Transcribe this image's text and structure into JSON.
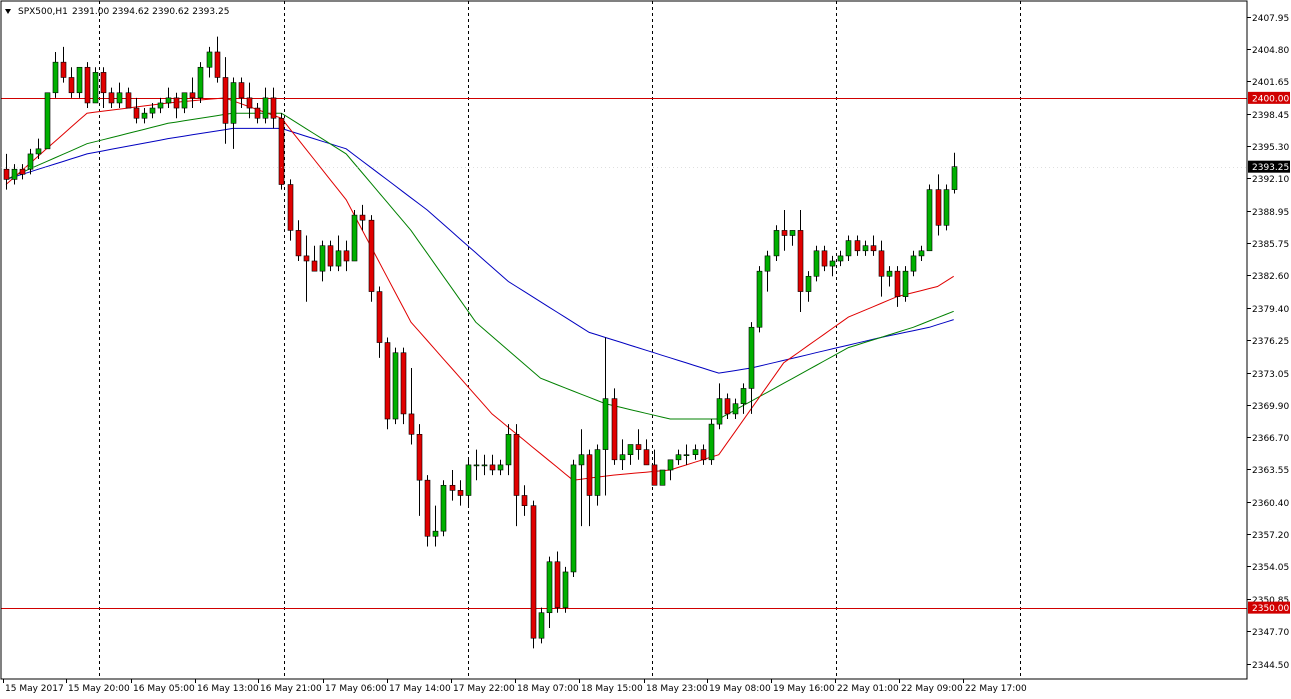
{
  "header": {
    "symbol": "SPX500,H1",
    "ohlc": "2391.00 2394.62 2390.62 2393.25"
  },
  "colors": {
    "bull": "#00b000",
    "bear": "#e00000",
    "ema_fast": "#e00000",
    "ema_mid": "#008000",
    "ema_slow": "#0000c0",
    "hline": "#d00000",
    "current": "#000000"
  },
  "chart_data": {
    "type": "candlestick",
    "symbol": "SPX500",
    "timeframe": "H1",
    "ylim": [
      2343.0,
      2409.5
    ],
    "y_ticks": [
      "2407.95",
      "2404.80",
      "2401.65",
      "2398.45",
      "2395.30",
      "2392.10",
      "2388.95",
      "2385.75",
      "2382.60",
      "2379.40",
      "2376.25",
      "2373.05",
      "2369.90",
      "2366.70",
      "2363.55",
      "2360.40",
      "2357.20",
      "2354.05",
      "2350.85",
      "2347.70",
      "2344.50"
    ],
    "x_labels": [
      "15 May 2017",
      "15 May 20:00",
      "16 May 05:00",
      "16 May 13:00",
      "16 May 21:00",
      "17 May 06:00",
      "17 May 14:00",
      "17 May 22:00",
      "18 May 07:00",
      "18 May 15:00",
      "18 May 23:00",
      "19 May 08:00",
      "19 May 16:00",
      "22 May 01:00",
      "22 May 09:00",
      "22 May 17:00"
    ],
    "separator_bars": [
      12,
      35,
      58,
      81,
      104,
      127
    ],
    "horizontal_lines": [
      {
        "value": 2400.0,
        "label": "2400.00"
      },
      {
        "value": 2350.0,
        "label": "2350.00"
      }
    ],
    "current_price": {
      "value": 2393.25,
      "label": "2393.25"
    },
    "candles": [
      [
        2393.0,
        2394.5,
        2391.0,
        2392.0
      ],
      [
        2392.0,
        2393.5,
        2391.5,
        2393.0
      ],
      [
        2393.0,
        2393.5,
        2392.0,
        2392.5
      ],
      [
        2393.0,
        2395.0,
        2392.5,
        2394.5
      ],
      [
        2394.5,
        2396.0,
        2394.0,
        2395.0
      ],
      [
        2395.0,
        2400.5,
        2395.0,
        2400.5
      ],
      [
        2400.5,
        2404.5,
        2400.0,
        2403.5
      ],
      [
        2403.5,
        2405.0,
        2401.5,
        2402.0
      ],
      [
        2402.0,
        2403.0,
        2400.0,
        2400.5
      ],
      [
        2400.5,
        2403.0,
        2400.0,
        2403.0
      ],
      [
        2403.0,
        2403.5,
        2399.0,
        2399.5
      ],
      [
        2399.5,
        2403.0,
        2399.5,
        2402.5
      ],
      [
        2402.5,
        2403.0,
        2399.0,
        2400.5
      ],
      [
        2400.5,
        2401.0,
        2399.0,
        2399.5
      ],
      [
        2399.5,
        2401.5,
        2399.0,
        2400.5
      ],
      [
        2400.5,
        2401.0,
        2399.0,
        2399.0
      ],
      [
        2399.0,
        2400.0,
        2397.5,
        2398.0
      ],
      [
        2398.0,
        2399.0,
        2397.5,
        2398.5
      ],
      [
        2398.5,
        2399.5,
        2398.0,
        2399.0
      ],
      [
        2399.0,
        2400.0,
        2398.5,
        2399.5
      ],
      [
        2399.5,
        2401.0,
        2399.0,
        2400.0
      ],
      [
        2400.0,
        2400.5,
        2398.0,
        2399.0
      ],
      [
        2399.0,
        2400.5,
        2398.5,
        2400.5
      ],
      [
        2400.5,
        2402.0,
        2399.0,
        2400.0
      ],
      [
        2400.0,
        2403.5,
        2399.5,
        2403.0
      ],
      [
        2403.0,
        2405.0,
        2402.0,
        2404.5
      ],
      [
        2404.5,
        2406.0,
        2401.5,
        2402.0
      ],
      [
        2402.0,
        2404.0,
        2395.5,
        2397.5
      ],
      [
        2397.5,
        2402.0,
        2395.0,
        2401.5
      ],
      [
        2401.5,
        2402.0,
        2399.0,
        2400.0
      ],
      [
        2400.0,
        2401.5,
        2398.0,
        2399.0
      ],
      [
        2399.0,
        2399.5,
        2397.5,
        2398.0
      ],
      [
        2398.0,
        2401.0,
        2397.5,
        2400.0
      ],
      [
        2400.0,
        2401.0,
        2397.0,
        2398.0
      ],
      [
        2398.0,
        2398.5,
        2391.0,
        2391.5
      ],
      [
        2391.5,
        2392.0,
        2386.0,
        2387.0
      ],
      [
        2387.0,
        2388.0,
        2384.0,
        2384.5
      ],
      [
        2384.5,
        2386.5,
        2380.0,
        2384.0
      ],
      [
        2384.0,
        2385.5,
        2383.0,
        2383.0
      ],
      [
        2383.0,
        2386.0,
        2382.0,
        2385.5
      ],
      [
        2385.5,
        2386.0,
        2383.0,
        2383.5
      ],
      [
        2383.5,
        2386.5,
        2383.0,
        2385.0
      ],
      [
        2385.0,
        2386.0,
        2383.0,
        2384.0
      ],
      [
        2384.0,
        2389.0,
        2384.0,
        2388.5
      ],
      [
        2388.5,
        2389.5,
        2387.0,
        2388.0
      ],
      [
        2388.0,
        2388.5,
        2380.0,
        2381.0
      ],
      [
        2381.0,
        2381.5,
        2374.5,
        2376.0
      ],
      [
        2376.0,
        2376.5,
        2367.5,
        2368.5
      ],
      [
        2368.5,
        2375.5,
        2368.0,
        2375.0
      ],
      [
        2375.0,
        2375.5,
        2368.0,
        2369.0
      ],
      [
        2369.0,
        2373.5,
        2366.0,
        2367.0
      ],
      [
        2367.0,
        2368.0,
        2359.0,
        2362.5
      ],
      [
        2362.5,
        2363.0,
        2356.0,
        2357.0
      ],
      [
        2357.0,
        2360.0,
        2356.0,
        2357.5
      ],
      [
        2357.5,
        2362.5,
        2357.0,
        2362.0
      ],
      [
        2362.0,
        2363.5,
        2360.5,
        2361.5
      ],
      [
        2361.5,
        2362.5,
        2360.0,
        2361.0
      ],
      [
        2361.0,
        2364.5,
        2360.0,
        2364.0
      ],
      [
        2364.0,
        2365.5,
        2362.5,
        2364.0
      ],
      [
        2364.0,
        2365.0,
        2363.0,
        2364.0
      ],
      [
        2364.0,
        2365.0,
        2363.0,
        2363.5
      ],
      [
        2363.5,
        2364.5,
        2363.0,
        2364.0
      ],
      [
        2364.0,
        2368.0,
        2363.0,
        2367.0
      ],
      [
        2367.0,
        2368.0,
        2358.0,
        2361.0
      ],
      [
        2361.0,
        2362.0,
        2359.0,
        2360.0
      ],
      [
        2360.0,
        2360.5,
        2346.0,
        2347.0
      ],
      [
        2347.0,
        2350.0,
        2346.5,
        2349.5
      ],
      [
        2349.5,
        2355.0,
        2348.0,
        2354.5
      ],
      [
        2354.5,
        2355.5,
        2349.5,
        2350.0
      ],
      [
        2350.0,
        2354.0,
        2349.5,
        2353.5
      ],
      [
        2353.5,
        2364.5,
        2353.0,
        2364.0
      ],
      [
        2364.0,
        2367.5,
        2358.0,
        2365.0
      ],
      [
        2365.0,
        2365.5,
        2358.0,
        2361.0
      ],
      [
        2361.0,
        2366.0,
        2360.0,
        2365.5
      ],
      [
        2365.5,
        2376.5,
        2361.0,
        2370.5
      ],
      [
        2370.5,
        2371.5,
        2364.0,
        2364.5
      ],
      [
        2364.5,
        2366.5,
        2363.5,
        2365.0
      ],
      [
        2365.0,
        2366.0,
        2364.0,
        2366.0
      ],
      [
        2366.0,
        2367.5,
        2364.5,
        2365.5
      ],
      [
        2365.5,
        2366.5,
        2364.0,
        2364.0
      ],
      [
        2364.0,
        2365.5,
        2362.0,
        2362.0
      ],
      [
        2362.0,
        2363.5,
        2362.0,
        2363.5
      ],
      [
        2363.5,
        2364.5,
        2362.5,
        2364.5
      ],
      [
        2364.5,
        2365.5,
        2364.0,
        2365.0
      ],
      [
        2365.0,
        2366.0,
        2364.0,
        2365.0
      ],
      [
        2365.0,
        2366.0,
        2364.5,
        2365.5
      ],
      [
        2365.5,
        2366.0,
        2364.0,
        2364.5
      ],
      [
        2364.5,
        2368.5,
        2364.0,
        2368.0
      ],
      [
        2368.0,
        2372.0,
        2367.5,
        2370.5
      ],
      [
        2370.5,
        2371.0,
        2368.5,
        2369.0
      ],
      [
        2369.0,
        2370.5,
        2368.5,
        2370.0
      ],
      [
        2370.0,
        2372.0,
        2369.0,
        2371.5
      ],
      [
        2371.5,
        2378.0,
        2369.0,
        2377.5
      ],
      [
        2377.5,
        2383.5,
        2377.0,
        2383.0
      ],
      [
        2383.0,
        2385.0,
        2381.0,
        2384.5
      ],
      [
        2384.5,
        2387.5,
        2384.0,
        2387.0
      ],
      [
        2387.0,
        2389.0,
        2385.0,
        2386.5
      ],
      [
        2386.5,
        2387.0,
        2385.5,
        2387.0
      ],
      [
        2387.0,
        2389.0,
        2379.0,
        2381.0
      ],
      [
        2381.0,
        2383.0,
        2380.0,
        2382.5
      ],
      [
        2382.5,
        2385.5,
        2382.0,
        2385.0
      ],
      [
        2385.0,
        2385.5,
        2383.0,
        2383.5
      ],
      [
        2383.5,
        2384.5,
        2382.5,
        2384.0
      ],
      [
        2384.0,
        2385.0,
        2383.5,
        2384.5
      ],
      [
        2384.5,
        2386.5,
        2384.0,
        2386.0
      ],
      [
        2386.0,
        2386.5,
        2384.5,
        2385.0
      ],
      [
        2385.0,
        2386.0,
        2384.5,
        2385.5
      ],
      [
        2385.5,
        2386.5,
        2384.5,
        2385.0
      ],
      [
        2385.0,
        2386.0,
        2380.5,
        2382.5
      ],
      [
        2382.5,
        2383.5,
        2381.5,
        2383.0
      ],
      [
        2383.0,
        2383.5,
        2379.5,
        2380.5
      ],
      [
        2380.5,
        2383.5,
        2380.0,
        2383.0
      ],
      [
        2383.0,
        2385.0,
        2382.5,
        2384.5
      ],
      [
        2384.5,
        2385.5,
        2384.0,
        2385.0
      ],
      [
        2385.0,
        2391.5,
        2385.0,
        2391.0
      ],
      [
        2391.0,
        2392.5,
        2386.5,
        2387.5
      ],
      [
        2387.5,
        2391.5,
        2387.0,
        2391.0
      ],
      [
        2391.0,
        2394.62,
        2390.62,
        2393.25
      ]
    ],
    "ema_fast_anchors": [
      [
        0,
        2391.5
      ],
      [
        10,
        2398.5
      ],
      [
        20,
        2399.5
      ],
      [
        27,
        2400.0
      ],
      [
        34,
        2398.0
      ],
      [
        42,
        2390.0
      ],
      [
        50,
        2378.0
      ],
      [
        60,
        2369.0
      ],
      [
        70,
        2362.5
      ],
      [
        75,
        2363.0
      ],
      [
        82,
        2363.5
      ],
      [
        88,
        2365.0
      ],
      [
        96,
        2374.0
      ],
      [
        104,
        2378.5
      ],
      [
        110,
        2380.5
      ],
      [
        115,
        2381.5
      ],
      [
        120,
        2384.0
      ]
    ],
    "ema_mid_anchors": [
      [
        0,
        2392.0
      ],
      [
        10,
        2395.5
      ],
      [
        20,
        2397.5
      ],
      [
        28,
        2398.5
      ],
      [
        34,
        2398.5
      ],
      [
        42,
        2394.5
      ],
      [
        50,
        2387.0
      ],
      [
        58,
        2378.0
      ],
      [
        66,
        2372.5
      ],
      [
        74,
        2370.0
      ],
      [
        82,
        2368.5
      ],
      [
        88,
        2368.5
      ],
      [
        96,
        2372.0
      ],
      [
        104,
        2375.5
      ],
      [
        112,
        2377.5
      ],
      [
        120,
        2380.0
      ]
    ],
    "ema_slow_anchors": [
      [
        0,
        2392.0
      ],
      [
        10,
        2394.5
      ],
      [
        20,
        2396.0
      ],
      [
        28,
        2397.0
      ],
      [
        34,
        2397.0
      ],
      [
        42,
        2395.0
      ],
      [
        52,
        2389.0
      ],
      [
        62,
        2382.0
      ],
      [
        72,
        2377.0
      ],
      [
        80,
        2375.0
      ],
      [
        88,
        2373.0
      ],
      [
        92,
        2373.5
      ],
      [
        100,
        2375.0
      ],
      [
        108,
        2376.5
      ],
      [
        114,
        2377.5
      ],
      [
        120,
        2379.0
      ]
    ]
  }
}
